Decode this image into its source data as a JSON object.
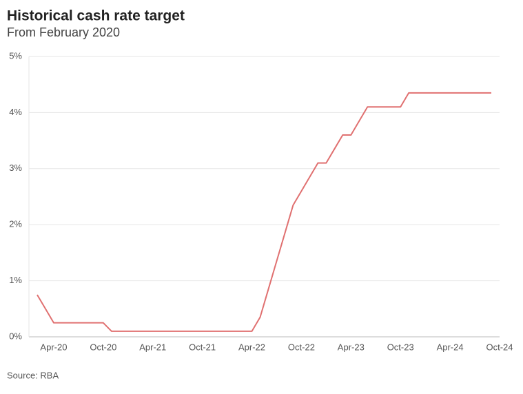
{
  "chart_data": {
    "type": "line",
    "title": "Historical cash rate target",
    "subtitle": "From February 2020",
    "source": "Source: RBA",
    "categories": [
      null,
      null,
      "Apr-20",
      null,
      null,
      null,
      null,
      null,
      "Oct-20",
      null,
      null,
      null,
      null,
      null,
      "Apr-21",
      null,
      null,
      null,
      null,
      null,
      "Oct-21",
      null,
      null,
      null,
      null,
      null,
      "Apr-22",
      null,
      null,
      null,
      null,
      null,
      "Oct-22",
      null,
      null,
      null,
      null,
      null,
      "Apr-23",
      null,
      null,
      null,
      null,
      null,
      "Oct-23",
      null,
      null,
      null,
      null,
      null,
      "Apr-24",
      null,
      null,
      null,
      null,
      null,
      "Oct-24"
    ],
    "values": [
      0.75,
      0.5,
      0.25,
      0.25,
      0.25,
      0.25,
      0.25,
      0.25,
      0.25,
      0.1,
      0.1,
      0.1,
      0.1,
      0.1,
      0.1,
      0.1,
      0.1,
      0.1,
      0.1,
      0.1,
      0.1,
      0.1,
      0.1,
      0.1,
      0.1,
      0.1,
      0.1,
      0.35,
      0.85,
      1.35,
      1.85,
      2.35,
      2.6,
      2.85,
      3.1,
      3.1,
      3.35,
      3.6,
      3.6,
      3.85,
      4.1,
      4.1,
      4.1,
      4.1,
      4.1,
      4.35,
      4.35,
      4.35,
      4.35,
      4.35,
      4.35,
      4.35,
      4.35,
      4.35,
      4.35,
      4.35,
      null
    ],
    "color": "#e07070",
    "ylim": [
      0,
      5
    ],
    "yticks": [
      {
        "value": 0,
        "label": "0%"
      },
      {
        "value": 1,
        "label": "1%"
      },
      {
        "value": 2,
        "label": "2%"
      },
      {
        "value": 3,
        "label": "3%"
      },
      {
        "value": 4,
        "label": "4%"
      },
      {
        "value": 5,
        "label": "5%"
      }
    ],
    "grid": true
  }
}
